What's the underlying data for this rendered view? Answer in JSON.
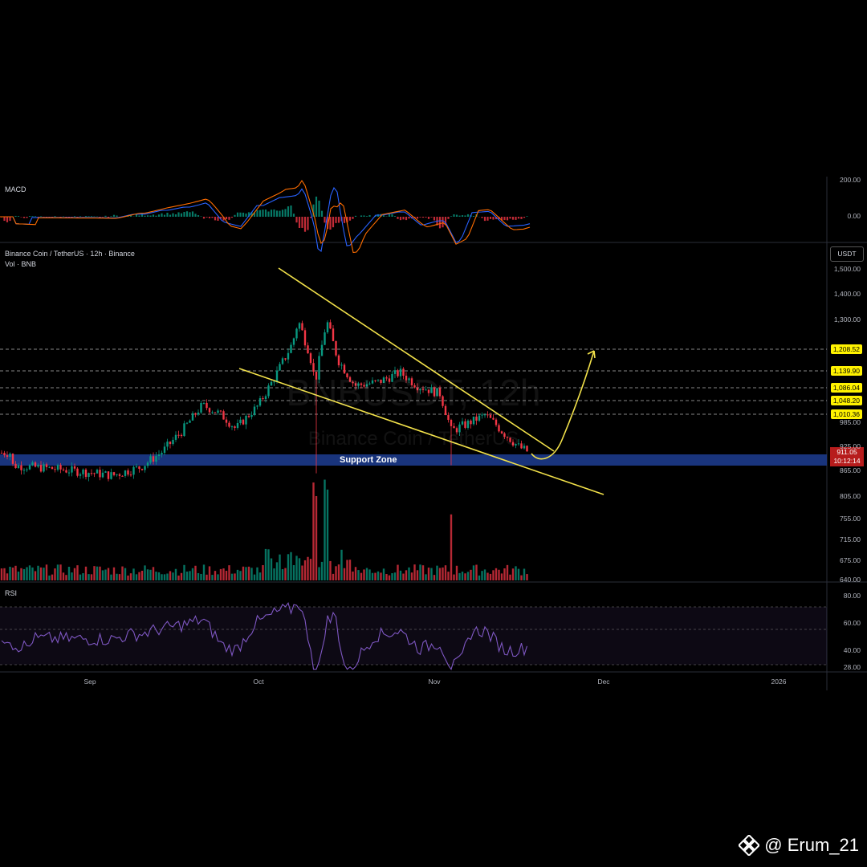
{
  "header": {
    "macd_label": "MACD",
    "symbol_title": "Binance Coin / TetherUS · 12h · Binance",
    "volume_label": "Vol · BNB",
    "rsi_label": "RSI",
    "unit": "USDT"
  },
  "watermark": {
    "symbol": "BNBUSDT, 12h",
    "description": "Binance Coin / TetherUS"
  },
  "annotation": {
    "support_zone_label": "Support Zone",
    "pattern": "falling wedge",
    "projection": "upward breakout arrow"
  },
  "current_price": {
    "price": "911.05",
    "countdown": "10:12:14",
    "color": "#b71c1c"
  },
  "credit": {
    "text": "@ Erum_21",
    "logo_icon": "binance-logo-icon"
  },
  "colors": {
    "up": "#089981",
    "down": "#f23645",
    "trendline": "#f2e14a",
    "support_zone": "#1c3a8a",
    "macd_line": "#2962ff",
    "signal_line": "#ff6d00",
    "rsi_line": "#7e57c2"
  },
  "chart_data": {
    "type": "candlestick",
    "symbol": "BNBUSDT",
    "interval": "12h",
    "price_axis": {
      "ticks": [
        "1,500.00",
        "1,400.00",
        "1,300.00",
        "985.00",
        "925.00",
        "865.00",
        "805.00",
        "755.00",
        "715.00",
        "675.00",
        "640.00"
      ],
      "tick_values": [
        1500,
        1400,
        1300,
        985,
        925,
        865,
        805,
        755,
        715,
        675,
        640
      ]
    },
    "level_labels": [
      "1,208.52",
      "1,139.90",
      "1,086.04",
      "1,048.20",
      "1,010.36"
    ],
    "level_values": [
      1208.52,
      1139.9,
      1086.04,
      1048.2,
      1010.36
    ],
    "support_zone": [
      880,
      905
    ],
    "x_axis": {
      "labels": [
        "Sep",
        "Oct",
        "Nov",
        "Dec",
        "2026"
      ]
    },
    "price_path": [
      {
        "t": "Aug 18",
        "p": 880
      },
      {
        "t": "Aug 25",
        "p": 872
      },
      {
        "t": "Sep 1",
        "p": 862
      },
      {
        "t": "Sep 5",
        "p": 855
      },
      {
        "t": "Sep 10",
        "p": 875
      },
      {
        "t": "Sep 14",
        "p": 915
      },
      {
        "t": "Sep 18",
        "p": 975
      },
      {
        "t": "Sep 21",
        "p": 1040
      },
      {
        "t": "Sep 24",
        "p": 1015
      },
      {
        "t": "Sep 27",
        "p": 970
      },
      {
        "t": "Oct 1",
        "p": 1040
      },
      {
        "t": "Oct 4",
        "p": 1130
      },
      {
        "t": "Oct 7",
        "p": 1230
      },
      {
        "t": "Oct 8",
        "p": 1300
      },
      {
        "t": "Oct 10",
        "p": 1200
      },
      {
        "t": "Oct 11",
        "p": 1110
      },
      {
        "t": "Oct 13",
        "p": 1300
      },
      {
        "t": "Oct 15",
        "p": 1180
      },
      {
        "t": "Oct 18",
        "p": 1100
      },
      {
        "t": "Oct 22",
        "p": 1110
      },
      {
        "t": "Oct 26",
        "p": 1140
      },
      {
        "t": "Oct 29",
        "p": 1100
      },
      {
        "t": "Nov 2",
        "p": 1075
      },
      {
        "t": "Nov 4",
        "p": 965
      },
      {
        "t": "Nov 7",
        "p": 985
      },
      {
        "t": "Nov 10",
        "p": 1010
      },
      {
        "t": "Nov 13",
        "p": 965
      },
      {
        "t": "Nov 16",
        "p": 925
      },
      {
        "t": "Nov 18",
        "p": 911
      }
    ],
    "volume_spikes": [
      "Oct 11",
      "Oct 13",
      "Nov 4"
    ],
    "macd_axis": {
      "ticks": [
        "200.00",
        "0.00"
      ],
      "tick_values": [
        200,
        0
      ]
    },
    "rsi_axis": {
      "ticks": [
        "80.00",
        "60.00",
        "40.00",
        "28.00"
      ],
      "tick_values": [
        80,
        60,
        40,
        28
      ]
    }
  }
}
